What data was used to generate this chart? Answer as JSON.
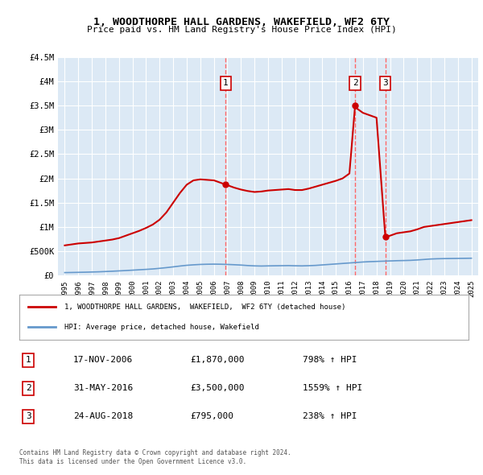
{
  "title": "1, WOODTHORPE HALL GARDENS, WAKEFIELD, WF2 6TY",
  "subtitle": "Price paid vs. HM Land Registry's House Price Index (HPI)",
  "background_color": "#dce9f5",
  "plot_bg_color": "#dce9f5",
  "fig_bg_color": "#ffffff",
  "ylim": [
    0,
    4500000
  ],
  "yticks": [
    0,
    500000,
    1000000,
    1500000,
    2000000,
    2500000,
    3000000,
    3500000,
    4000000,
    4500000
  ],
  "ytick_labels": [
    "£0",
    "£500K",
    "£1M",
    "£1.5M",
    "£2M",
    "£2.5M",
    "£3M",
    "£3.5M",
    "£4M",
    "£4.5M"
  ],
  "xlim_start": 1994.5,
  "xlim_end": 2025.5,
  "xticks": [
    1995,
    1996,
    1997,
    1998,
    1999,
    2000,
    2001,
    2002,
    2003,
    2004,
    2005,
    2006,
    2007,
    2008,
    2009,
    2010,
    2011,
    2012,
    2013,
    2014,
    2015,
    2016,
    2017,
    2018,
    2019,
    2020,
    2021,
    2022,
    2023,
    2024,
    2025
  ],
  "red_line_color": "#cc0000",
  "blue_line_color": "#6699cc",
  "sale_marker_color": "#cc0000",
  "sale_vline_color": "#ff6666",
  "transaction_label_bg": "#ffffff",
  "transaction_label_border": "#cc0000",
  "transactions": [
    {
      "id": 1,
      "date": 2006.88,
      "price": 1870000,
      "label": "1",
      "pct": "798%",
      "date_str": "17-NOV-2006",
      "price_str": "£1,870,000"
    },
    {
      "id": 2,
      "date": 2016.42,
      "price": 3500000,
      "label": "2",
      "pct": "1559%",
      "date_str": "31-MAY-2016",
      "price_str": "£3,500,000"
    },
    {
      "id": 3,
      "date": 2018.65,
      "price": 795000,
      "label": "3",
      "pct": "238%",
      "date_str": "24-AUG-2018",
      "price_str": "£795,000"
    }
  ],
  "legend_line1": "1, WOODTHORPE HALL GARDENS,  WAKEFIELD,  WF2 6TY (detached house)",
  "legend_line2": "HPI: Average price, detached house, Wakefield",
  "footer1": "Contains HM Land Registry data © Crown copyright and database right 2024.",
  "footer2": "This data is licensed under the Open Government Licence v3.0.",
  "red_series_x": [
    1995.0,
    1995.5,
    1996.0,
    1996.5,
    1997.0,
    1997.5,
    1998.0,
    1998.5,
    1999.0,
    1999.5,
    2000.0,
    2000.5,
    2001.0,
    2001.5,
    2002.0,
    2002.5,
    2003.0,
    2003.5,
    2004.0,
    2004.5,
    2005.0,
    2005.5,
    2006.0,
    2006.5,
    2006.88,
    2007.0,
    2007.5,
    2008.0,
    2008.5,
    2009.0,
    2009.5,
    2010.0,
    2010.5,
    2011.0,
    2011.5,
    2012.0,
    2012.5,
    2013.0,
    2013.5,
    2014.0,
    2014.5,
    2015.0,
    2015.5,
    2016.0,
    2016.42,
    2016.5,
    2017.0,
    2017.5,
    2018.0,
    2018.65,
    2019.0,
    2019.5,
    2020.0,
    2020.5,
    2021.0,
    2021.5,
    2022.0,
    2022.5,
    2023.0,
    2023.5,
    2024.0,
    2024.5,
    2025.0
  ],
  "red_series_y": [
    620000,
    640000,
    660000,
    670000,
    680000,
    700000,
    720000,
    740000,
    770000,
    820000,
    870000,
    920000,
    980000,
    1050000,
    1150000,
    1300000,
    1500000,
    1700000,
    1870000,
    1960000,
    1980000,
    1970000,
    1960000,
    1910000,
    1870000,
    1860000,
    1810000,
    1770000,
    1740000,
    1720000,
    1730000,
    1750000,
    1760000,
    1770000,
    1780000,
    1760000,
    1760000,
    1790000,
    1830000,
    1870000,
    1910000,
    1950000,
    2000000,
    2100000,
    3500000,
    3450000,
    3350000,
    3300000,
    3250000,
    795000,
    820000,
    870000,
    890000,
    910000,
    950000,
    1000000,
    1020000,
    1040000,
    1060000,
    1080000,
    1100000,
    1120000,
    1140000
  ],
  "blue_series_x": [
    1995.0,
    1995.5,
    1996.0,
    1996.5,
    1997.0,
    1997.5,
    1998.0,
    1998.5,
    1999.0,
    1999.5,
    2000.0,
    2000.5,
    2001.0,
    2001.5,
    2002.0,
    2002.5,
    2003.0,
    2003.5,
    2004.0,
    2004.5,
    2005.0,
    2005.5,
    2006.0,
    2006.5,
    2007.0,
    2007.5,
    2008.0,
    2008.5,
    2009.0,
    2009.5,
    2010.0,
    2010.5,
    2011.0,
    2011.5,
    2012.0,
    2012.5,
    2013.0,
    2013.5,
    2014.0,
    2014.5,
    2015.0,
    2015.5,
    2016.0,
    2016.5,
    2017.0,
    2017.5,
    2018.0,
    2018.5,
    2019.0,
    2019.5,
    2020.0,
    2020.5,
    2021.0,
    2021.5,
    2022.0,
    2022.5,
    2023.0,
    2023.5,
    2024.0,
    2024.5,
    2025.0
  ],
  "blue_series_y": [
    60000,
    62000,
    65000,
    68000,
    72000,
    76000,
    82000,
    88000,
    95000,
    102000,
    110000,
    118000,
    126000,
    135000,
    148000,
    162000,
    178000,
    195000,
    210000,
    220000,
    228000,
    232000,
    234000,
    232000,
    228000,
    222000,
    215000,
    205000,
    198000,
    195000,
    198000,
    200000,
    202000,
    204000,
    200000,
    198000,
    202000,
    208000,
    218000,
    228000,
    238000,
    248000,
    258000,
    268000,
    278000,
    285000,
    290000,
    295000,
    300000,
    305000,
    308000,
    312000,
    320000,
    330000,
    340000,
    345000,
    348000,
    350000,
    352000,
    354000,
    356000
  ]
}
